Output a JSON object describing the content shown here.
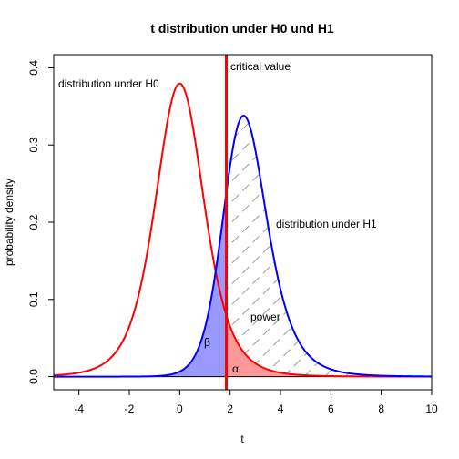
{
  "chart_data": {
    "type": "area",
    "title": "t distribution under H0 und H1",
    "xlabel": "t",
    "ylabel": "probability density",
    "xlim": [
      -5,
      10
    ],
    "ylim": [
      0,
      0.4
    ],
    "x_ticks": [
      "-4",
      "-2",
      "0",
      "2",
      "4",
      "6",
      "8",
      "10"
    ],
    "y_ticks": [
      "0.0",
      "0.1",
      "0.2",
      "0.3",
      "0.4"
    ],
    "grid": false,
    "series": [
      {
        "name": "distribution under H0",
        "color": "#ff0000",
        "df": 5,
        "ncp": 0
      },
      {
        "name": "distribution under H1",
        "color": "#0000ff",
        "df": 5,
        "ncp": 2.5
      }
    ],
    "critical_value": 1.85,
    "critical_color": "#ff0000",
    "regions": {
      "beta": {
        "label": "β",
        "color": "#9999ff"
      },
      "alpha": {
        "label": "α",
        "color": "#ff9999"
      },
      "power": {
        "label": "power",
        "hatch_color": "#999999"
      }
    },
    "annotations": {
      "h0": "distribution under H0",
      "h1": "distribution under H1",
      "critical": "critical value"
    }
  }
}
